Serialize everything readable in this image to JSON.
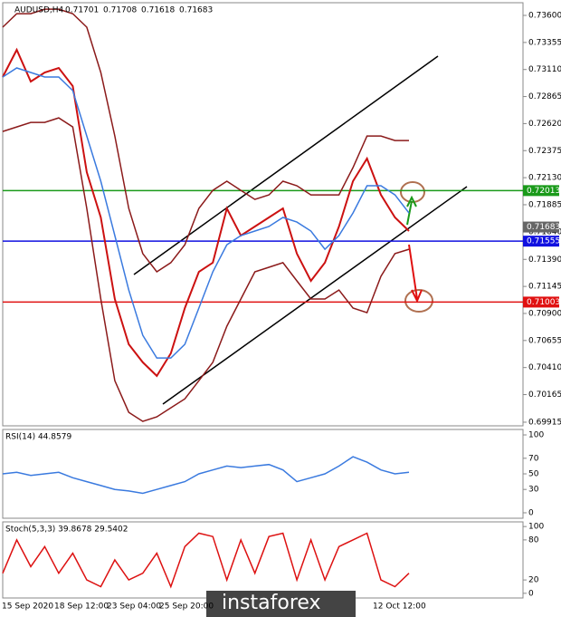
{
  "chart_data": [
    {
      "type": "line",
      "title": "AUDUSD,H4",
      "header_values": [
        "0.71701",
        "0.71708",
        "0.71618",
        "0.71683"
      ],
      "ylim": [
        0.69882,
        0.73715
      ],
      "yticks": [
        {
          "value": 0.736,
          "label": "0.73600"
        },
        {
          "value": 0.73355,
          "label": "0.73355"
        },
        {
          "value": 0.7311,
          "label": "0.73110"
        },
        {
          "value": 0.72865,
          "label": "0.72865"
        },
        {
          "value": 0.7262,
          "label": "0.72620"
        },
        {
          "value": 0.72375,
          "label": "0.72375"
        },
        {
          "value": 0.7213,
          "label": "0.72130"
        },
        {
          "value": 0.71885,
          "label": "0.71885"
        },
        {
          "value": 0.7164,
          "label": "0.71640"
        },
        {
          "value": 0.7139,
          "label": "0.71390"
        },
        {
          "value": 0.71145,
          "label": "0.71145"
        },
        {
          "value": 0.709,
          "label": "0.70900"
        },
        {
          "value": 0.70655,
          "label": "0.70655"
        },
        {
          "value": 0.7041,
          "label": "0.70410"
        },
        {
          "value": 0.70165,
          "label": "0.70165"
        },
        {
          "value": 0.69915,
          "label": "0.69915"
        }
      ],
      "levels": [
        {
          "value": 0.72013,
          "label": "0.72013",
          "color": "#1a9a1a"
        },
        {
          "value": 0.71683,
          "label": "0.71683",
          "color": "#666666"
        },
        {
          "value": 0.71555,
          "label": "0.71555",
          "color": "#1010e0"
        },
        {
          "value": 0.71003,
          "label": "0.71003",
          "color": "#e01010"
        }
      ],
      "series": [
        {
          "name": "Price",
          "color": "#cc1111",
          "values": [
            0.73042,
            0.73288,
            0.73001,
            0.73083,
            0.73124,
            0.7296,
            0.7218,
            0.7177,
            0.71031,
            0.70621,
            0.70457,
            0.70334,
            0.70539,
            0.70949,
            0.71277,
            0.7136,
            0.71852,
            0.71606,
            0.71688,
            0.7177,
            0.71852,
            0.71442,
            0.71195,
            0.7136,
            0.71688,
            0.72098,
            0.72303,
            0.71975,
            0.7177,
            0.71647
          ]
        },
        {
          "name": "MA",
          "color": "#3a7adf",
          "values": [
            0.73042,
            0.73124,
            0.73083,
            0.73042,
            0.73042,
            0.72919,
            0.72508,
            0.72098,
            0.71606,
            0.71112,
            0.70702,
            0.70497,
            0.70497,
            0.70621,
            0.70949,
            0.71277,
            0.71523,
            0.71606,
            0.71647,
            0.71688,
            0.7177,
            0.71728,
            0.71647,
            0.71482,
            0.71606,
            0.7181,
            0.72057,
            0.72057,
            0.71974,
            0.7181
          ]
        },
        {
          "name": "Upper band",
          "color": "#8b1a1a",
          "values": [
            0.73493,
            0.73616,
            0.73616,
            0.73657,
            0.73657,
            0.73616,
            0.73493,
            0.73083,
            0.72508,
            0.71852,
            0.71442,
            0.71277,
            0.7136,
            0.71523,
            0.71852,
            0.72015,
            0.72098,
            0.72015,
            0.71933,
            0.71974,
            0.72098,
            0.72057,
            0.71974,
            0.71974,
            0.71974,
            0.72221,
            0.72508,
            0.72508,
            0.72467,
            0.72467
          ]
        },
        {
          "name": "Lower band",
          "color": "#8b1a1a",
          "values": [
            0.72549,
            0.7259,
            0.72631,
            0.72631,
            0.72672,
            0.7259,
            0.71852,
            0.71031,
            0.70291,
            0.70004,
            0.69922,
            0.69963,
            0.70045,
            0.70127,
            0.70291,
            0.70457,
            0.70784,
            0.71031,
            0.71277,
            0.71318,
            0.7136,
            0.71195,
            0.71031,
            0.71031,
            0.71112,
            0.70949,
            0.70907,
            0.71236,
            0.71442,
            0.71482
          ]
        }
      ],
      "x_labels": [
        "15 Sep 2020",
        "18 Sep 12:00",
        "23 Sep 04:00",
        "25 Sep 20:00",
        "12 Oct 12:00"
      ],
      "watermark": "instaforex"
    },
    {
      "type": "line",
      "title": "RSI(14) 44.8579",
      "ylim": [
        -7,
        107
      ],
      "yticks": [
        0,
        30,
        50,
        70,
        100
      ],
      "series": [
        {
          "name": "RSI",
          "color": "#3a7adf",
          "values": [
            50,
            52,
            48,
            50,
            52,
            45,
            40,
            35,
            30,
            28,
            25,
            30,
            35,
            40,
            50,
            55,
            60,
            58,
            60,
            62,
            55,
            40,
            45,
            50,
            60,
            72,
            65,
            55,
            50,
            52
          ]
        }
      ]
    },
    {
      "type": "line",
      "title": "Stoch(5,3,3) 39.8678 29.5402",
      "ylim": [
        -7,
        107
      ],
      "yticks": [
        0,
        20,
        80,
        100
      ],
      "series": [
        {
          "name": "Stoch",
          "color": "#dd1111",
          "values": [
            30,
            80,
            40,
            70,
            30,
            60,
            20,
            10,
            50,
            20,
            30,
            60,
            10,
            70,
            90,
            85,
            20,
            80,
            30,
            85,
            90,
            20,
            80,
            20,
            70,
            80,
            90,
            20,
            10,
            30
          ]
        }
      ]
    }
  ]
}
